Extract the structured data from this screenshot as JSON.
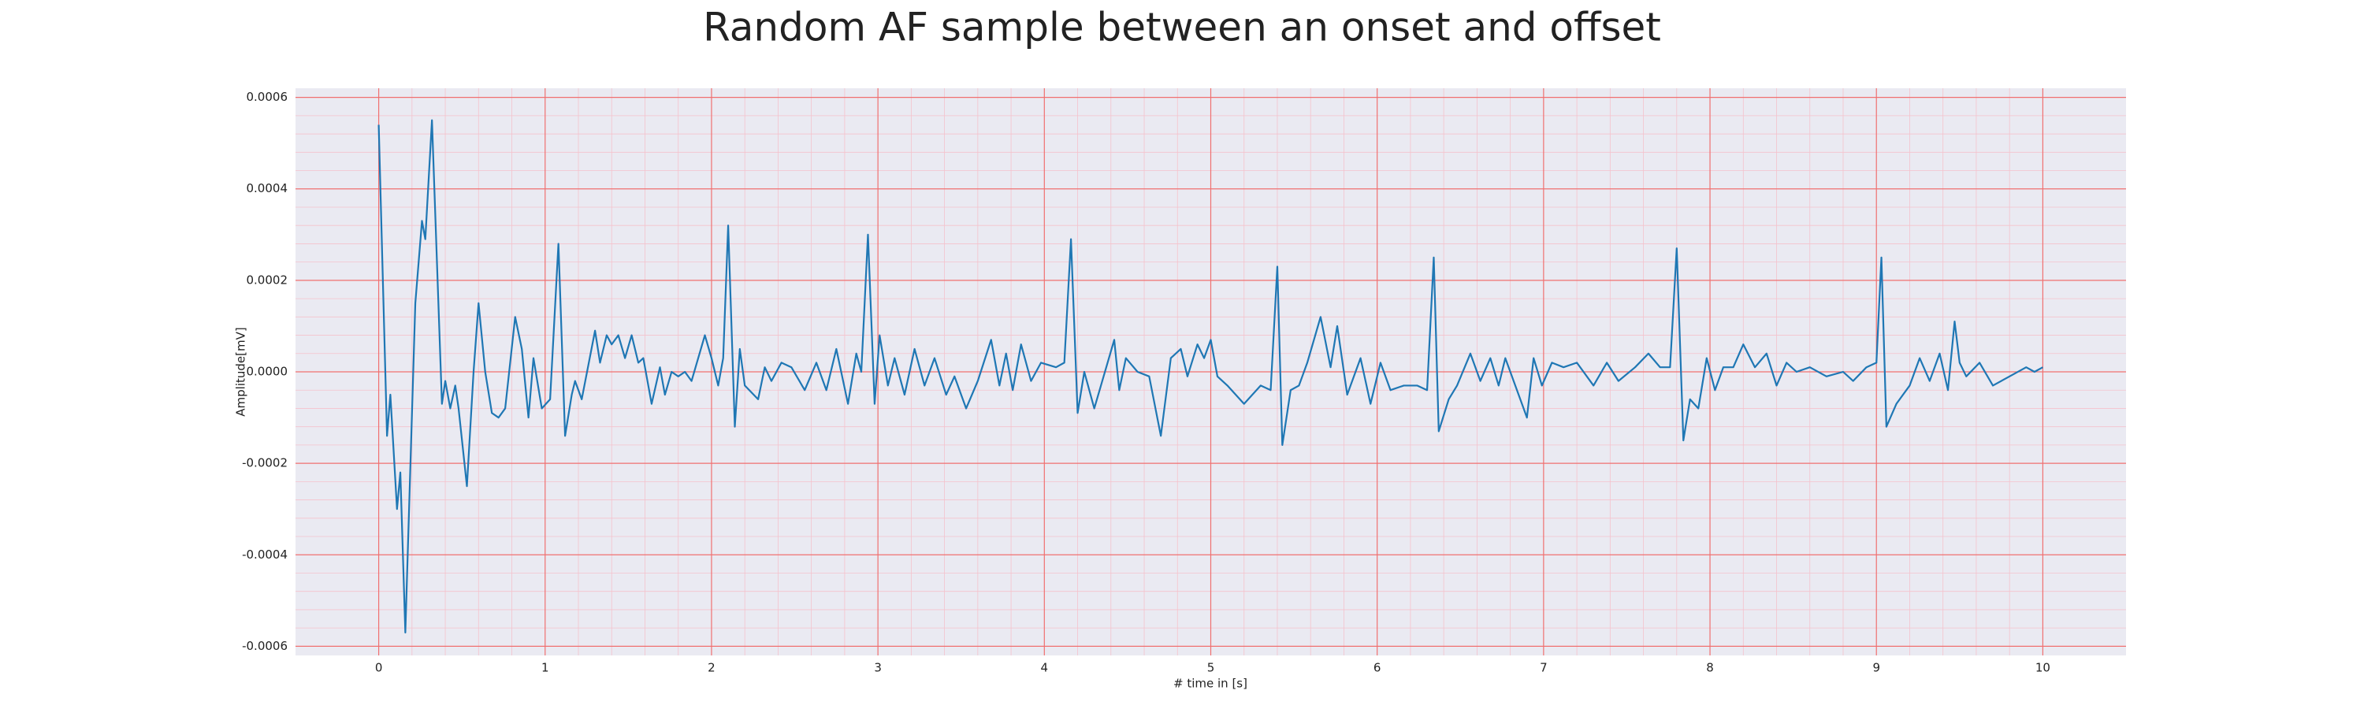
{
  "chart_data": {
    "type": "line",
    "title": "Random AF sample between an onset and offset",
    "xlabel": "# time in [s]",
    "ylabel": "Amplitude[mV]",
    "xlim": [
      -0.5,
      10.5
    ],
    "ylim": [
      -0.00062,
      0.00062
    ],
    "xticks": [
      0,
      1,
      2,
      3,
      4,
      5,
      6,
      7,
      8,
      9,
      10
    ],
    "yticks": [
      -0.0006,
      -0.0004,
      -0.0002,
      {
        "value": 0,
        "label": "0.0000"
      },
      0.0002,
      0.0004,
      0.0006
    ],
    "grid": true,
    "minor_grid": true,
    "series": [
      {
        "color": "#1f77b4",
        "x": [
          0,
          0.05,
          0.07,
          0.11,
          0.13,
          0.16,
          0.22,
          0.26,
          0.28,
          0.32,
          0.38,
          0.4,
          0.43,
          0.46,
          0.48,
          0.53,
          0.57,
          0.6,
          0.64,
          0.68,
          0.72,
          0.76,
          0.82,
          0.86,
          0.9,
          0.93,
          0.98,
          1.03,
          1.08,
          1.12,
          1.16,
          1.18,
          1.22,
          1.3,
          1.33,
          1.37,
          1.4,
          1.44,
          1.48,
          1.52,
          1.56,
          1.59,
          1.64,
          1.69,
          1.72,
          1.76,
          1.8,
          1.84,
          1.88,
          1.96,
          2.0,
          2.04,
          2.07,
          2.1,
          2.14,
          2.17,
          2.2,
          2.28,
          2.32,
          2.36,
          2.42,
          2.48,
          2.56,
          2.63,
          2.69,
          2.75,
          2.82,
          2.87,
          2.9,
          2.94,
          2.98,
          3.01,
          3.06,
          3.1,
          3.16,
          3.22,
          3.28,
          3.34,
          3.41,
          3.46,
          3.53,
          3.6,
          3.68,
          3.73,
          3.77,
          3.81,
          3.86,
          3.92,
          3.98,
          4.07,
          4.12,
          4.16,
          4.2,
          4.24,
          4.3,
          4.38,
          4.42,
          4.45,
          4.49,
          4.56,
          4.63,
          4.7,
          4.76,
          4.82,
          4.86,
          4.92,
          4.96,
          5.0,
          5.04,
          5.1,
          5.2,
          5.3,
          5.36,
          5.4,
          5.43,
          5.48,
          5.53,
          5.58,
          5.66,
          5.72,
          5.76,
          5.82,
          5.9,
          5.96,
          6.02,
          6.08,
          6.16,
          6.24,
          6.3,
          6.34,
          6.37,
          6.43,
          6.48,
          6.56,
          6.62,
          6.68,
          6.73,
          6.77,
          6.84,
          6.9,
          6.94,
          6.99,
          7.05,
          7.12,
          7.2,
          7.3,
          7.38,
          7.45,
          7.55,
          7.63,
          7.7,
          7.76,
          7.8,
          7.84,
          7.88,
          7.93,
          7.98,
          8.03,
          8.08,
          8.14,
          8.2,
          8.27,
          8.34,
          8.4,
          8.46,
          8.52,
          8.6,
          8.7,
          8.8,
          8.86,
          8.94,
          9.0,
          9.03,
          9.06,
          9.12,
          9.2,
          9.26,
          9.32,
          9.38,
          9.43,
          9.47,
          9.5,
          9.54,
          9.62,
          9.7,
          9.8,
          9.9,
          9.95,
          10.0
        ],
        "values": [
          0.00054,
          -0.00014,
          -5e-05,
          -0.0003,
          -0.00022,
          -0.00057,
          0.00015,
          0.00033,
          0.00029,
          0.00055,
          -7e-05,
          -2e-05,
          -8e-05,
          -3e-05,
          -8e-05,
          -0.00025,
          0,
          0.00015,
          0,
          -9e-05,
          -0.0001,
          -8e-05,
          0.00012,
          5e-05,
          -0.0001,
          3e-05,
          -8e-05,
          -6e-05,
          0.00028,
          -0.00014,
          -5e-05,
          -2e-05,
          -6e-05,
          9e-05,
          2e-05,
          8e-05,
          6e-05,
          8e-05,
          3e-05,
          8e-05,
          2e-05,
          3e-05,
          -7e-05,
          1e-05,
          -5e-05,
          0,
          -1e-05,
          0,
          -2e-05,
          8e-05,
          3e-05,
          -3e-05,
          3e-05,
          0.00032,
          -0.00012,
          5e-05,
          -3e-05,
          -6e-05,
          1e-05,
          -2e-05,
          2e-05,
          1e-05,
          -4e-05,
          2e-05,
          -4e-05,
          5e-05,
          -7e-05,
          4e-05,
          0,
          0.0003,
          -7e-05,
          8e-05,
          -3e-05,
          3e-05,
          -5e-05,
          5e-05,
          -3e-05,
          3e-05,
          -5e-05,
          -1e-05,
          -8e-05,
          -2e-05,
          7e-05,
          -3e-05,
          4e-05,
          -4e-05,
          6e-05,
          -2e-05,
          2e-05,
          1e-05,
          2e-05,
          0.00029,
          -9e-05,
          0,
          -8e-05,
          2e-05,
          7e-05,
          -4e-05,
          3e-05,
          0,
          -1e-05,
          -0.00014,
          3e-05,
          5e-05,
          -1e-05,
          6e-05,
          3e-05,
          7e-05,
          -1e-05,
          -3e-05,
          -7e-05,
          -3e-05,
          -4e-05,
          0.00023,
          -0.00016,
          -4e-05,
          -3e-05,
          2e-05,
          0.00012,
          1e-05,
          0.0001,
          -5e-05,
          3e-05,
          -7e-05,
          2e-05,
          -4e-05,
          -3e-05,
          -3e-05,
          -4e-05,
          0.00025,
          -0.00013,
          -6e-05,
          -3e-05,
          4e-05,
          -2e-05,
          3e-05,
          -3e-05,
          3e-05,
          -4e-05,
          -0.0001,
          3e-05,
          -3e-05,
          2e-05,
          1e-05,
          2e-05,
          -3e-05,
          2e-05,
          -2e-05,
          1e-05,
          4e-05,
          1e-05,
          1e-05,
          0.00027,
          -0.00015,
          -6e-05,
          -8e-05,
          3e-05,
          -4e-05,
          1e-05,
          1e-05,
          6e-05,
          1e-05,
          4e-05,
          -3e-05,
          2e-05,
          0,
          1e-05,
          -1e-05,
          0,
          -2e-05,
          1e-05,
          2e-05,
          0.00025,
          -0.00012,
          -7e-05,
          -3e-05,
          3e-05,
          -2e-05,
          4e-05,
          -4e-05,
          0.00011,
          2e-05,
          -1e-05,
          2e-05,
          -3e-05,
          -1e-05,
          1e-05,
          0,
          1e-05
        ]
      }
    ]
  }
}
